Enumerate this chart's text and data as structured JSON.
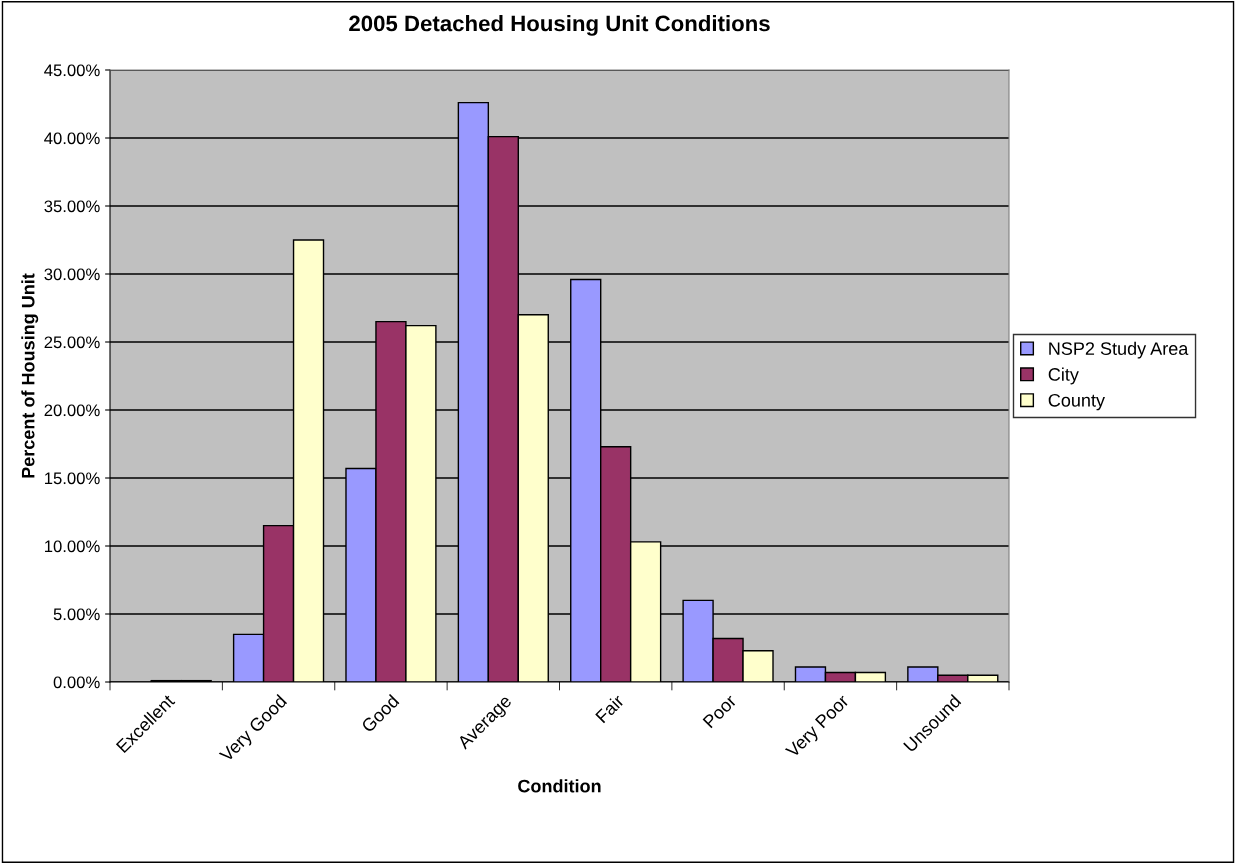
{
  "chart_data": {
    "type": "bar",
    "title": "2005 Detached Housing Unit Conditions",
    "xlabel": "Condition",
    "ylabel": "Percent of Housing Unit",
    "categories": [
      "Excellent",
      "Very Good",
      "Good",
      "Average",
      "Fair",
      "Poor",
      "Very Poor",
      "Unsound"
    ],
    "series": [
      {
        "name": "NSP2 Study Area",
        "color": "#9999ff",
        "values": [
          null,
          3.5,
          15.7,
          42.6,
          29.6,
          6.0,
          1.1,
          1.1
        ]
      },
      {
        "name": "City",
        "color": "#993366",
        "values": [
          0.1,
          11.5,
          26.5,
          40.1,
          17.3,
          3.2,
          0.7,
          0.5
        ]
      },
      {
        "name": "County",
        "color": "#ffffcc",
        "values": [
          0.1,
          32.5,
          26.2,
          27.0,
          10.3,
          2.3,
          0.7,
          0.5
        ]
      }
    ],
    "ylim": [
      0,
      45
    ],
    "yticks": [
      {
        "value": 0,
        "label": "0.00%"
      },
      {
        "value": 5,
        "label": "5.00%"
      },
      {
        "value": 10,
        "label": "10.00%"
      },
      {
        "value": 15,
        "label": "15.00%"
      },
      {
        "value": 20,
        "label": "20.00%"
      },
      {
        "value": 25,
        "label": "25.00%"
      },
      {
        "value": 30,
        "label": "30.00%"
      },
      {
        "value": 35,
        "label": "35.00%"
      },
      {
        "value": 40,
        "label": "40.00%"
      },
      {
        "value": 45,
        "label": "45.00%"
      }
    ],
    "grid": "y",
    "legend": "right"
  }
}
